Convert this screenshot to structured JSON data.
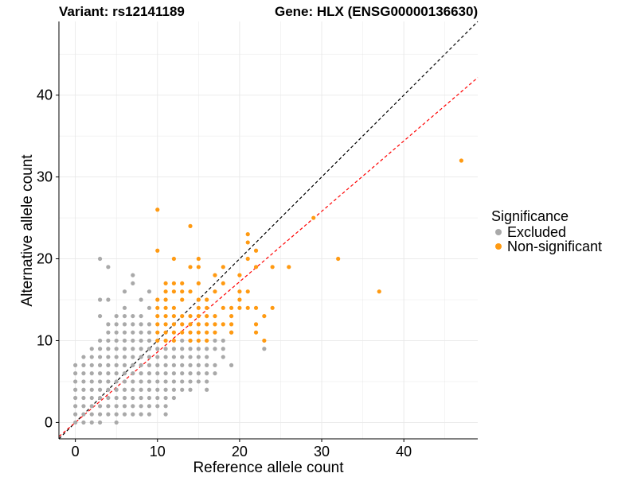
{
  "chart_data": {
    "type": "scatter",
    "title_left": "Variant: rs12141189",
    "title_right": "Gene: HLX (ENSG00000136630)",
    "xlabel": "Reference allele count",
    "ylabel": "Alternative allele count",
    "xlim": [
      -2,
      49
    ],
    "ylim": [
      -2,
      49
    ],
    "x_ticks": [
      0,
      10,
      20,
      30,
      40
    ],
    "y_ticks": [
      0,
      10,
      20,
      30,
      40
    ],
    "grid": true,
    "legend": {
      "title": "Significance",
      "position": "right",
      "entries": [
        "Excluded",
        "Non-significant"
      ]
    },
    "colors": {
      "Excluded": "#a9a9a9",
      "Non-significant": "#ff9a12",
      "identity_line": "#000000",
      "fit_line": "#ff0000",
      "grid": "#e8e8e8",
      "axis": "#000000"
    },
    "reference_lines": [
      {
        "name": "identity",
        "slope": 1.0,
        "intercept": 0,
        "style": "dashed"
      },
      {
        "name": "fit",
        "slope": 0.86,
        "intercept": 0,
        "style": "dashed"
      }
    ],
    "series": [
      {
        "name": "Excluded",
        "points": [
          [
            0,
            0
          ],
          [
            0,
            1
          ],
          [
            0,
            2
          ],
          [
            0,
            3
          ],
          [
            0,
            4
          ],
          [
            0,
            5
          ],
          [
            0,
            6
          ],
          [
            0,
            7
          ],
          [
            1,
            0
          ],
          [
            1,
            1
          ],
          [
            1,
            2
          ],
          [
            1,
            3
          ],
          [
            1,
            4
          ],
          [
            1,
            5
          ],
          [
            1,
            6
          ],
          [
            1,
            7
          ],
          [
            1,
            8
          ],
          [
            2,
            0
          ],
          [
            2,
            1
          ],
          [
            2,
            2
          ],
          [
            2,
            3
          ],
          [
            2,
            4
          ],
          [
            2,
            5
          ],
          [
            2,
            6
          ],
          [
            2,
            7
          ],
          [
            2,
            8
          ],
          [
            2,
            9
          ],
          [
            3,
            0
          ],
          [
            3,
            1
          ],
          [
            3,
            2
          ],
          [
            3,
            3
          ],
          [
            3,
            4
          ],
          [
            3,
            5
          ],
          [
            3,
            6
          ],
          [
            3,
            7
          ],
          [
            3,
            8
          ],
          [
            3,
            9
          ],
          [
            3,
            10
          ],
          [
            3,
            13
          ],
          [
            3,
            15
          ],
          [
            3,
            20
          ],
          [
            4,
            1
          ],
          [
            4,
            2
          ],
          [
            4,
            3
          ],
          [
            4,
            4
          ],
          [
            4,
            5
          ],
          [
            4,
            6
          ],
          [
            4,
            7
          ],
          [
            4,
            8
          ],
          [
            4,
            9
          ],
          [
            4,
            10
          ],
          [
            4,
            11
          ],
          [
            4,
            12
          ],
          [
            4,
            15
          ],
          [
            4,
            19
          ],
          [
            5,
            0
          ],
          [
            5,
            1
          ],
          [
            5,
            2
          ],
          [
            5,
            3
          ],
          [
            5,
            4
          ],
          [
            5,
            5
          ],
          [
            5,
            6
          ],
          [
            5,
            7
          ],
          [
            5,
            8
          ],
          [
            5,
            9
          ],
          [
            5,
            10
          ],
          [
            5,
            11
          ],
          [
            5,
            12
          ],
          [
            5,
            13
          ],
          [
            6,
            1
          ],
          [
            6,
            2
          ],
          [
            6,
            3
          ],
          [
            6,
            4
          ],
          [
            6,
            5
          ],
          [
            6,
            6
          ],
          [
            6,
            7
          ],
          [
            6,
            8
          ],
          [
            6,
            9
          ],
          [
            6,
            10
          ],
          [
            6,
            11
          ],
          [
            6,
            12
          ],
          [
            6,
            13
          ],
          [
            6,
            14
          ],
          [
            6,
            16
          ],
          [
            7,
            1
          ],
          [
            7,
            2
          ],
          [
            7,
            3
          ],
          [
            7,
            4
          ],
          [
            7,
            5
          ],
          [
            7,
            6
          ],
          [
            7,
            7
          ],
          [
            7,
            8
          ],
          [
            7,
            9
          ],
          [
            7,
            10
          ],
          [
            7,
            11
          ],
          [
            7,
            12
          ],
          [
            7,
            13
          ],
          [
            7,
            17
          ],
          [
            7,
            18
          ],
          [
            8,
            1
          ],
          [
            8,
            2
          ],
          [
            8,
            3
          ],
          [
            8,
            4
          ],
          [
            8,
            5
          ],
          [
            8,
            6
          ],
          [
            8,
            7
          ],
          [
            8,
            8
          ],
          [
            8,
            9
          ],
          [
            8,
            10
          ],
          [
            8,
            11
          ],
          [
            8,
            12
          ],
          [
            8,
            13
          ],
          [
            8,
            15
          ],
          [
            9,
            1
          ],
          [
            9,
            2
          ],
          [
            9,
            3
          ],
          [
            9,
            4
          ],
          [
            9,
            5
          ],
          [
            9,
            6
          ],
          [
            9,
            7
          ],
          [
            9,
            8
          ],
          [
            9,
            9
          ],
          [
            9,
            10
          ],
          [
            9,
            11
          ],
          [
            9,
            12
          ],
          [
            9,
            14
          ],
          [
            9,
            16
          ],
          [
            10,
            2
          ],
          [
            10,
            3
          ],
          [
            10,
            4
          ],
          [
            10,
            5
          ],
          [
            10,
            6
          ],
          [
            10,
            7
          ],
          [
            10,
            8
          ],
          [
            10,
            9
          ],
          [
            11,
            1
          ],
          [
            11,
            2
          ],
          [
            11,
            3
          ],
          [
            11,
            4
          ],
          [
            11,
            5
          ],
          [
            11,
            6
          ],
          [
            11,
            7
          ],
          [
            11,
            8
          ],
          [
            11,
            9
          ],
          [
            12,
            3
          ],
          [
            12,
            4
          ],
          [
            12,
            5
          ],
          [
            12,
            6
          ],
          [
            12,
            7
          ],
          [
            12,
            8
          ],
          [
            12,
            9
          ],
          [
            13,
            4
          ],
          [
            13,
            5
          ],
          [
            13,
            6
          ],
          [
            13,
            7
          ],
          [
            13,
            8
          ],
          [
            13,
            9
          ],
          [
            13,
            10
          ],
          [
            14,
            4
          ],
          [
            14,
            5
          ],
          [
            14,
            6
          ],
          [
            14,
            7
          ],
          [
            14,
            8
          ],
          [
            14,
            9
          ],
          [
            14,
            10
          ],
          [
            15,
            5
          ],
          [
            15,
            6
          ],
          [
            15,
            7
          ],
          [
            15,
            8
          ],
          [
            15,
            9
          ],
          [
            16,
            4
          ],
          [
            16,
            5
          ],
          [
            16,
            6
          ],
          [
            16,
            7
          ],
          [
            16,
            8
          ],
          [
            16,
            9
          ],
          [
            17,
            6
          ],
          [
            17,
            7
          ],
          [
            17,
            9
          ],
          [
            17,
            10
          ],
          [
            18,
            8
          ],
          [
            18,
            9
          ],
          [
            18,
            10
          ],
          [
            19,
            7
          ],
          [
            19,
            11
          ],
          [
            23,
            9
          ]
        ]
      },
      {
        "name": "Non-significant",
        "points": [
          [
            10,
            10
          ],
          [
            10,
            11
          ],
          [
            10,
            12
          ],
          [
            10,
            13
          ],
          [
            10,
            14
          ],
          [
            10,
            15
          ],
          [
            10,
            21
          ],
          [
            10,
            26
          ],
          [
            11,
            10
          ],
          [
            11,
            11
          ],
          [
            11,
            12
          ],
          [
            11,
            13
          ],
          [
            11,
            14
          ],
          [
            11,
            15
          ],
          [
            11,
            16
          ],
          [
            11,
            17
          ],
          [
            12,
            10
          ],
          [
            12,
            11
          ],
          [
            12,
            12
          ],
          [
            12,
            13
          ],
          [
            12,
            14
          ],
          [
            12,
            16
          ],
          [
            12,
            17
          ],
          [
            12,
            20
          ],
          [
            13,
            11
          ],
          [
            13,
            12
          ],
          [
            13,
            13
          ],
          [
            13,
            15
          ],
          [
            13,
            16
          ],
          [
            13,
            17
          ],
          [
            14,
            10
          ],
          [
            14,
            11
          ],
          [
            14,
            12
          ],
          [
            14,
            13
          ],
          [
            14,
            16
          ],
          [
            14,
            19
          ],
          [
            14,
            24
          ],
          [
            15,
            10
          ],
          [
            15,
            11
          ],
          [
            15,
            12
          ],
          [
            15,
            13
          ],
          [
            15,
            14
          ],
          [
            15,
            15
          ],
          [
            15,
            17
          ],
          [
            15,
            19
          ],
          [
            15,
            20
          ],
          [
            16,
            10
          ],
          [
            16,
            11
          ],
          [
            16,
            12
          ],
          [
            16,
            13
          ],
          [
            16,
            14
          ],
          [
            16,
            15
          ],
          [
            17,
            11
          ],
          [
            17,
            12
          ],
          [
            17,
            13
          ],
          [
            17,
            16
          ],
          [
            17,
            18
          ],
          [
            18,
            12
          ],
          [
            18,
            14
          ],
          [
            18,
            17
          ],
          [
            18,
            19
          ],
          [
            19,
            11
          ],
          [
            19,
            12
          ],
          [
            19,
            13
          ],
          [
            19,
            14
          ],
          [
            20,
            14
          ],
          [
            20,
            15
          ],
          [
            20,
            16
          ],
          [
            20,
            18
          ],
          [
            21,
            14
          ],
          [
            21,
            16
          ],
          [
            21,
            20
          ],
          [
            21,
            22
          ],
          [
            21,
            23
          ],
          [
            22,
            11
          ],
          [
            22,
            12
          ],
          [
            22,
            14
          ],
          [
            22,
            19
          ],
          [
            22,
            21
          ],
          [
            23,
            10
          ],
          [
            23,
            13
          ],
          [
            24,
            14
          ],
          [
            24,
            19
          ],
          [
            26,
            19
          ],
          [
            29,
            25
          ],
          [
            32,
            20
          ],
          [
            37,
            16
          ],
          [
            47,
            32
          ]
        ]
      }
    ]
  }
}
